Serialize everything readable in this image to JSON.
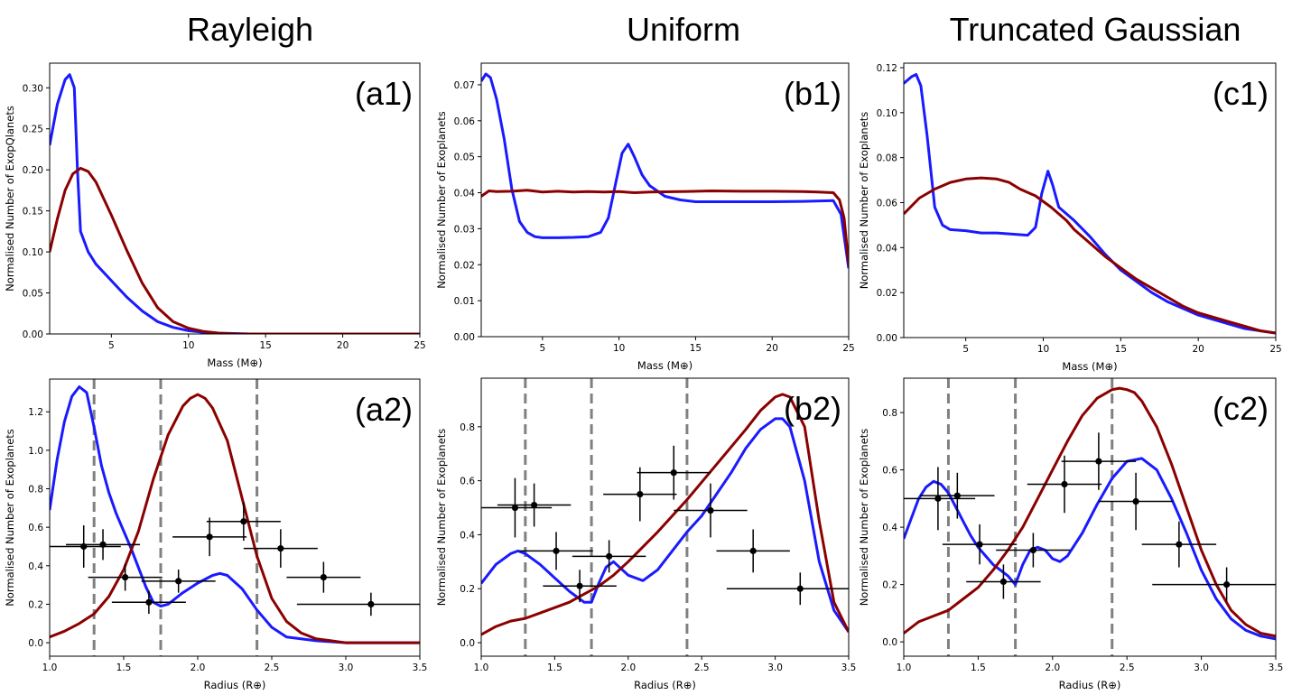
{
  "column_titles": [
    "Rayleigh",
    "Uniform",
    "Truncated Gaussian"
  ],
  "colors": {
    "blue": "#1a1aff",
    "red": "#8b0000",
    "dash": "#808080",
    "data": "#000000"
  },
  "chart_data": [
    {
      "type": "line",
      "panel": "(a1)",
      "xlabel": "Mass (M⊕)",
      "ylabel": "Normalised Number of ExopQlanets",
      "xlim": [
        1,
        25
      ],
      "ylim": [
        0,
        0.33
      ],
      "xticks": [
        5,
        10,
        15,
        20,
        25
      ],
      "yticks": [
        0.0,
        0.05,
        0.1,
        0.15,
        0.2,
        0.25,
        0.3
      ],
      "series": [
        {
          "name": "blue",
          "color": "#1a1aff",
          "x": [
            1,
            1.5,
            2,
            2.3,
            2.6,
            2.8,
            3,
            3.5,
            4,
            5,
            6,
            7,
            8,
            9,
            10,
            11,
            12,
            14,
            16.5
          ],
          "y": [
            0.23,
            0.28,
            0.31,
            0.316,
            0.3,
            0.2,
            0.125,
            0.1,
            0.085,
            0.065,
            0.045,
            0.028,
            0.015,
            0.008,
            0.004,
            0.002,
            0.001,
            0.0,
            0.0
          ]
        },
        {
          "name": "red",
          "color": "#8b0000",
          "x": [
            1,
            1.5,
            2,
            2.5,
            3,
            3.5,
            4,
            5,
            6,
            7,
            8,
            9,
            10,
            11,
            12,
            13,
            14,
            16,
            18,
            20,
            22,
            25
          ],
          "y": [
            0.1,
            0.14,
            0.175,
            0.195,
            0.202,
            0.198,
            0.185,
            0.145,
            0.102,
            0.062,
            0.032,
            0.015,
            0.007,
            0.003,
            0.001,
            0,
            0,
            0,
            0,
            0,
            0,
            0
          ]
        }
      ]
    },
    {
      "type": "line",
      "panel": "(b1)",
      "xlabel": "Mass (M⊕)",
      "ylabel": "Normalised Number of Exoplanets",
      "xlim": [
        1,
        25
      ],
      "ylim": [
        0,
        0.076
      ],
      "xticks": [
        5,
        10,
        15,
        20,
        25
      ],
      "yticks": [
        0.0,
        0.01,
        0.02,
        0.03,
        0.04,
        0.05,
        0.06,
        0.07
      ],
      "series": [
        {
          "name": "blue",
          "color": "#1a1aff",
          "x": [
            1,
            1.3,
            1.6,
            2,
            2.5,
            3,
            3.5,
            4,
            4.5,
            5,
            6,
            7,
            8,
            8.8,
            9.3,
            9.8,
            10.2,
            10.6,
            11,
            11.5,
            12,
            13,
            14,
            15,
            16,
            18,
            20,
            22,
            24,
            24.5,
            25
          ],
          "y": [
            0.071,
            0.073,
            0.072,
            0.066,
            0.055,
            0.041,
            0.032,
            0.029,
            0.0278,
            0.0275,
            0.0275,
            0.0276,
            0.0278,
            0.029,
            0.033,
            0.043,
            0.051,
            0.0535,
            0.05,
            0.045,
            0.042,
            0.039,
            0.038,
            0.0375,
            0.0375,
            0.0375,
            0.0375,
            0.0376,
            0.0378,
            0.034,
            0.019
          ]
        },
        {
          "name": "red",
          "color": "#8b0000",
          "x": [
            1,
            1.5,
            2,
            3,
            4,
            5,
            6,
            7,
            8,
            9,
            10,
            11,
            12,
            14,
            16,
            18,
            20,
            22,
            23,
            24,
            24.4,
            24.7,
            25
          ],
          "y": [
            0.039,
            0.0405,
            0.0403,
            0.0404,
            0.0407,
            0.0402,
            0.0404,
            0.0402,
            0.0403,
            0.0402,
            0.0403,
            0.04,
            0.0402,
            0.0403,
            0.0405,
            0.0404,
            0.0404,
            0.0403,
            0.0402,
            0.04,
            0.038,
            0.033,
            0.02
          ]
        }
      ]
    },
    {
      "type": "line",
      "panel": "(c1)",
      "xlabel": "Mass (M⊕)",
      "ylabel": "Normalised Number of Exoplanets",
      "xlim": [
        1,
        25
      ],
      "ylim": [
        0,
        0.122
      ],
      "xticks": [
        5,
        10,
        15,
        20,
        25
      ],
      "yticks": [
        0.0,
        0.02,
        0.04,
        0.06,
        0.08,
        0.1,
        0.12
      ],
      "series": [
        {
          "name": "blue",
          "color": "#1a1aff",
          "x": [
            1,
            1.5,
            1.8,
            2.1,
            2.5,
            3,
            3.5,
            4,
            5,
            6,
            7,
            8,
            9,
            9.5,
            9.9,
            10.3,
            10.6,
            11,
            11.5,
            12,
            13,
            14,
            15,
            16,
            17,
            18,
            19,
            20,
            21,
            22,
            23,
            24,
            25
          ],
          "y": [
            0.113,
            0.116,
            0.117,
            0.112,
            0.09,
            0.058,
            0.05,
            0.048,
            0.0475,
            0.0465,
            0.0465,
            0.046,
            0.0455,
            0.049,
            0.064,
            0.074,
            0.068,
            0.058,
            0.055,
            0.052,
            0.045,
            0.037,
            0.03,
            0.025,
            0.02,
            0.016,
            0.013,
            0.01,
            0.008,
            0.006,
            0.004,
            0.003,
            0.002
          ]
        },
        {
          "name": "red",
          "color": "#8b0000",
          "x": [
            1,
            2,
            3,
            4,
            5,
            6,
            7,
            7.8,
            8.5,
            9.5,
            10.5,
            11.5,
            12,
            13,
            14,
            15,
            16,
            17,
            18,
            19,
            20,
            21,
            22,
            23,
            24,
            25
          ],
          "y": [
            0.055,
            0.062,
            0.066,
            0.069,
            0.0705,
            0.071,
            0.0705,
            0.069,
            0.066,
            0.063,
            0.058,
            0.052,
            0.048,
            0.042,
            0.036,
            0.031,
            0.026,
            0.022,
            0.018,
            0.014,
            0.011,
            0.009,
            0.007,
            0.005,
            0.003,
            0.002
          ]
        }
      ]
    },
    {
      "type": "line+errorbar",
      "panel": "(a2)",
      "xlabel": "Radius (R⊕)",
      "ylabel": "Normalised Number of Exoplanets",
      "xlim": [
        1.0,
        3.5
      ],
      "ylim": [
        -0.07,
        1.37
      ],
      "xticks": [
        1.0,
        1.5,
        2.0,
        2.5,
        3.0,
        3.5
      ],
      "yticks": [
        0.0,
        0.2,
        0.4,
        0.6,
        0.8,
        1.0,
        1.2
      ],
      "vlines": [
        1.3,
        1.75,
        2.4
      ],
      "series": [
        {
          "name": "blue",
          "color": "#1a1aff",
          "x": [
            1,
            1.05,
            1.1,
            1.15,
            1.2,
            1.25,
            1.3,
            1.35,
            1.4,
            1.45,
            1.5,
            1.55,
            1.6,
            1.65,
            1.7,
            1.75,
            1.8,
            1.85,
            1.9,
            2,
            2.1,
            2.15,
            2.2,
            2.3,
            2.4,
            2.5,
            2.6,
            2.8,
            3,
            3.5
          ],
          "y": [
            0.69,
            0.95,
            1.15,
            1.28,
            1.33,
            1.3,
            1.12,
            0.92,
            0.78,
            0.67,
            0.58,
            0.49,
            0.39,
            0.29,
            0.21,
            0.19,
            0.2,
            0.23,
            0.26,
            0.31,
            0.35,
            0.36,
            0.35,
            0.28,
            0.17,
            0.08,
            0.03,
            0.01,
            0,
            0
          ]
        },
        {
          "name": "red",
          "color": "#8b0000",
          "x": [
            1,
            1.1,
            1.2,
            1.3,
            1.4,
            1.5,
            1.6,
            1.7,
            1.8,
            1.9,
            1.95,
            2,
            2.05,
            2.1,
            2.2,
            2.3,
            2.4,
            2.5,
            2.6,
            2.7,
            2.8,
            2.9,
            3,
            3.2,
            3.5
          ],
          "y": [
            0.03,
            0.06,
            0.1,
            0.15,
            0.24,
            0.38,
            0.58,
            0.85,
            1.08,
            1.23,
            1.27,
            1.29,
            1.27,
            1.22,
            1.05,
            0.75,
            0.45,
            0.23,
            0.11,
            0.05,
            0.02,
            0.01,
            0,
            0,
            0
          ]
        }
      ],
      "points": [
        {
          "x": 1.23,
          "y": 0.5,
          "xerr": 0.25,
          "yerr": 0.11
        },
        {
          "x": 1.36,
          "y": 0.51,
          "xerr": 0.25,
          "yerr": 0.08
        },
        {
          "x": 1.51,
          "y": 0.34,
          "xerr": 0.25,
          "yerr": 0.07
        },
        {
          "x": 1.67,
          "y": 0.21,
          "xerr": 0.25,
          "yerr": 0.06
        },
        {
          "x": 1.87,
          "y": 0.32,
          "xerr": 0.25,
          "yerr": 0.06
        },
        {
          "x": 2.08,
          "y": 0.55,
          "xerr": 0.25,
          "yerr": 0.1
        },
        {
          "x": 2.31,
          "y": 0.63,
          "xerr": 0.25,
          "yerr": 0.1
        },
        {
          "x": 2.56,
          "y": 0.49,
          "xerr": 0.25,
          "yerr": 0.1
        },
        {
          "x": 2.85,
          "y": 0.34,
          "xerr": 0.25,
          "yerr": 0.08
        },
        {
          "x": 3.17,
          "y": 0.2,
          "xerr": 0.5,
          "yerr": 0.06
        }
      ]
    },
    {
      "type": "line+errorbar",
      "panel": "(b2)",
      "xlabel": "Radius (R⊕)",
      "ylabel": "Normalised Number of Exoplanets",
      "xlim": [
        1.0,
        3.5
      ],
      "ylim": [
        -0.05,
        0.98
      ],
      "xticks": [
        1.0,
        1.5,
        2.0,
        2.5,
        3.0,
        3.5
      ],
      "yticks": [
        0.0,
        0.2,
        0.4,
        0.6,
        0.8
      ],
      "vlines": [
        1.3,
        1.75,
        2.4
      ],
      "series": [
        {
          "name": "blue",
          "color": "#1a1aff",
          "x": [
            1,
            1.1,
            1.2,
            1.25,
            1.3,
            1.4,
            1.5,
            1.6,
            1.7,
            1.75,
            1.8,
            1.85,
            1.9,
            2,
            2.1,
            2.2,
            2.3,
            2.4,
            2.5,
            2.6,
            2.7,
            2.8,
            2.9,
            3,
            3.05,
            3.1,
            3.2,
            3.3,
            3.4,
            3.5
          ],
          "y": [
            0.22,
            0.29,
            0.33,
            0.34,
            0.33,
            0.29,
            0.24,
            0.19,
            0.15,
            0.15,
            0.22,
            0.28,
            0.3,
            0.25,
            0.23,
            0.27,
            0.34,
            0.41,
            0.47,
            0.55,
            0.63,
            0.72,
            0.79,
            0.83,
            0.83,
            0.8,
            0.6,
            0.3,
            0.12,
            0.04
          ]
        },
        {
          "name": "red",
          "color": "#8b0000",
          "x": [
            1,
            1.1,
            1.2,
            1.3,
            1.4,
            1.5,
            1.6,
            1.7,
            1.8,
            1.9,
            2,
            2.2,
            2.4,
            2.6,
            2.8,
            2.9,
            3,
            3.05,
            3.1,
            3.2,
            3.3,
            3.4,
            3.5
          ],
          "y": [
            0.03,
            0.06,
            0.08,
            0.09,
            0.11,
            0.13,
            0.15,
            0.18,
            0.21,
            0.25,
            0.3,
            0.41,
            0.53,
            0.66,
            0.79,
            0.86,
            0.91,
            0.92,
            0.91,
            0.8,
            0.45,
            0.15,
            0.04
          ]
        }
      ],
      "points": [
        {
          "x": 1.23,
          "y": 0.5,
          "xerr": 0.25,
          "yerr": 0.11
        },
        {
          "x": 1.36,
          "y": 0.51,
          "xerr": 0.25,
          "yerr": 0.08
        },
        {
          "x": 1.51,
          "y": 0.34,
          "xerr": 0.25,
          "yerr": 0.07
        },
        {
          "x": 1.67,
          "y": 0.21,
          "xerr": 0.25,
          "yerr": 0.06
        },
        {
          "x": 1.87,
          "y": 0.32,
          "xerr": 0.25,
          "yerr": 0.06
        },
        {
          "x": 2.08,
          "y": 0.55,
          "xerr": 0.25,
          "yerr": 0.1
        },
        {
          "x": 2.31,
          "y": 0.63,
          "xerr": 0.25,
          "yerr": 0.1
        },
        {
          "x": 2.56,
          "y": 0.49,
          "xerr": 0.25,
          "yerr": 0.1
        },
        {
          "x": 2.85,
          "y": 0.34,
          "xerr": 0.25,
          "yerr": 0.08
        },
        {
          "x": 3.17,
          "y": 0.2,
          "xerr": 0.5,
          "yerr": 0.06
        }
      ]
    },
    {
      "type": "line+errorbar",
      "panel": "(c2)",
      "xlabel": "Radius (R⊕)",
      "ylabel": "Normalised Number of Exoplanets",
      "xlim": [
        1.0,
        3.5
      ],
      "ylim": [
        -0.05,
        0.92
      ],
      "xticks": [
        1.0,
        1.5,
        2.0,
        2.5,
        3.0,
        3.5
      ],
      "yticks": [
        0.0,
        0.2,
        0.4,
        0.6,
        0.8
      ],
      "vlines": [
        1.3,
        1.75,
        2.4
      ],
      "series": [
        {
          "name": "blue",
          "color": "#1a1aff",
          "x": [
            1,
            1.05,
            1.1,
            1.15,
            1.2,
            1.25,
            1.3,
            1.35,
            1.4,
            1.45,
            1.5,
            1.55,
            1.6,
            1.65,
            1.7,
            1.75,
            1.8,
            1.85,
            1.9,
            1.95,
            2,
            2.05,
            2.1,
            2.2,
            2.3,
            2.4,
            2.5,
            2.6,
            2.7,
            2.8,
            2.9,
            3,
            3.1,
            3.2,
            3.3,
            3.4,
            3.5
          ],
          "y": [
            0.36,
            0.43,
            0.5,
            0.54,
            0.56,
            0.55,
            0.52,
            0.47,
            0.42,
            0.37,
            0.33,
            0.3,
            0.27,
            0.25,
            0.23,
            0.2,
            0.27,
            0.32,
            0.33,
            0.32,
            0.29,
            0.28,
            0.3,
            0.38,
            0.48,
            0.57,
            0.63,
            0.64,
            0.6,
            0.5,
            0.38,
            0.25,
            0.15,
            0.08,
            0.04,
            0.02,
            0.01
          ]
        },
        {
          "name": "red",
          "color": "#8b0000",
          "x": [
            1,
            1.1,
            1.2,
            1.3,
            1.4,
            1.5,
            1.6,
            1.7,
            1.8,
            1.9,
            2,
            2.1,
            2.2,
            2.3,
            2.4,
            2.45,
            2.5,
            2.55,
            2.6,
            2.7,
            2.8,
            2.9,
            3,
            3.1,
            3.2,
            3.3,
            3.4,
            3.5
          ],
          "y": [
            0.03,
            0.07,
            0.09,
            0.11,
            0.15,
            0.19,
            0.25,
            0.32,
            0.4,
            0.5,
            0.6,
            0.7,
            0.79,
            0.85,
            0.88,
            0.885,
            0.88,
            0.87,
            0.84,
            0.75,
            0.62,
            0.47,
            0.32,
            0.2,
            0.11,
            0.06,
            0.03,
            0.02
          ]
        }
      ],
      "points": [
        {
          "x": 1.23,
          "y": 0.5,
          "xerr": 0.25,
          "yerr": 0.11
        },
        {
          "x": 1.36,
          "y": 0.51,
          "xerr": 0.25,
          "yerr": 0.08
        },
        {
          "x": 1.51,
          "y": 0.34,
          "xerr": 0.25,
          "yerr": 0.07
        },
        {
          "x": 1.67,
          "y": 0.21,
          "xerr": 0.25,
          "yerr": 0.06
        },
        {
          "x": 1.87,
          "y": 0.32,
          "xerr": 0.25,
          "yerr": 0.06
        },
        {
          "x": 2.08,
          "y": 0.55,
          "xerr": 0.25,
          "yerr": 0.1
        },
        {
          "x": 2.31,
          "y": 0.63,
          "xerr": 0.25,
          "yerr": 0.1
        },
        {
          "x": 2.56,
          "y": 0.49,
          "xerr": 0.25,
          "yerr": 0.1
        },
        {
          "x": 2.85,
          "y": 0.34,
          "xerr": 0.25,
          "yerr": 0.08
        },
        {
          "x": 3.17,
          "y": 0.2,
          "xerr": 0.5,
          "yerr": 0.06
        }
      ]
    }
  ]
}
